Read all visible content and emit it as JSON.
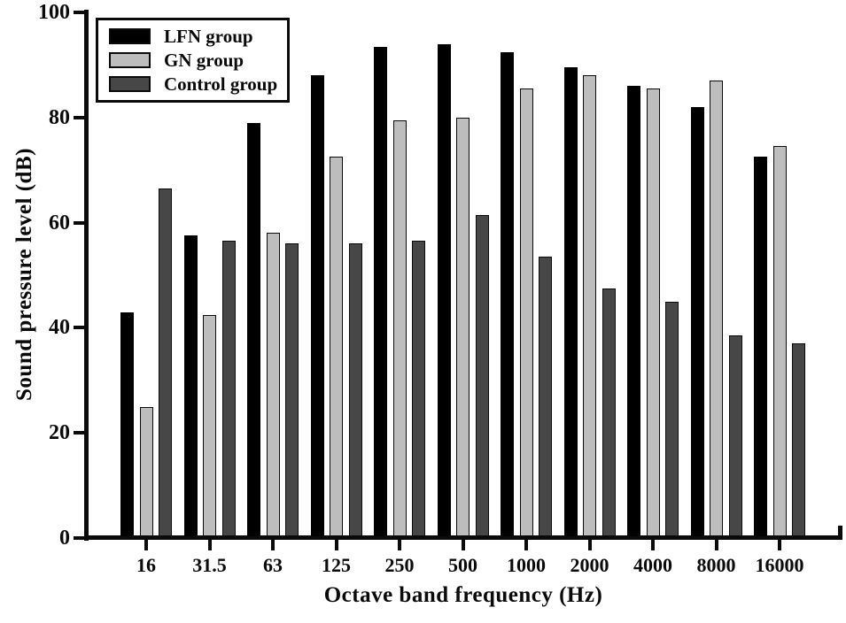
{
  "chart_data": {
    "type": "bar",
    "title": "",
    "xlabel": "Octave band frequency (Hz)",
    "ylabel": "Sound pressure level (dB)",
    "categories": [
      "16",
      "31.5",
      "63",
      "125",
      "250",
      "500",
      "1000",
      "2000",
      "4000",
      "8000",
      "16000"
    ],
    "series": [
      {
        "name": "LFN group",
        "color": "#000000",
        "values": [
          43,
          57.5,
          79,
          88,
          93.5,
          94,
          92.5,
          89.5,
          86,
          82,
          72.5
        ]
      },
      {
        "name": "GN group",
        "color": "#bdbdbd",
        "values": [
          25,
          42.5,
          58,
          72.5,
          79.5,
          80,
          85.5,
          88,
          85.5,
          87,
          74.5
        ]
      },
      {
        "name": "Control group",
        "color": "#474747",
        "values": [
          66.5,
          56.5,
          56,
          56,
          56.5,
          61.5,
          53.5,
          47.5,
          45,
          38.5,
          37
        ]
      }
    ],
    "ylim": [
      0,
      100
    ],
    "yticks": [
      0,
      20,
      40,
      60,
      80,
      100
    ],
    "grid": false,
    "legend_position": "upper-left",
    "axis_color": "#0a0a0a",
    "background_color": "#ffffff"
  }
}
